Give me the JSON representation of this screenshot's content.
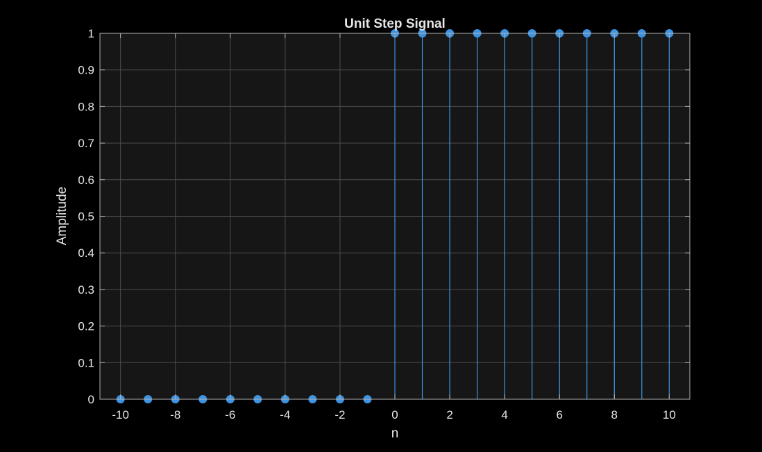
{
  "colors": {
    "figure_background": "#000000",
    "axes_background": "#161616",
    "axes_border": "#b3b3b3",
    "grid": "#4d4d4d",
    "text": "#e6e6e6",
    "series": "#3d93e0"
  },
  "chart_data": {
    "type": "stem",
    "title": "Unit Step Signal",
    "xlabel": "n",
    "ylabel": "Amplitude",
    "xlim": [
      -10.75,
      10.75
    ],
    "ylim": [
      0,
      1
    ],
    "grid": true,
    "xticks": [
      -10,
      -8,
      -6,
      -4,
      -2,
      0,
      2,
      4,
      6,
      8,
      10
    ],
    "xtick_labels": [
      "-10",
      "-8",
      "-6",
      "-4",
      "-2",
      "0",
      "2",
      "4",
      "6",
      "8",
      "10"
    ],
    "yticks": [
      0,
      0.1,
      0.2,
      0.3,
      0.4,
      0.5,
      0.6,
      0.7,
      0.8,
      0.9,
      1
    ],
    "ytick_labels": [
      "0",
      "0.1",
      "0.2",
      "0.3",
      "0.4",
      "0.5",
      "0.6",
      "0.7",
      "0.8",
      "0.9",
      "1"
    ],
    "series": [
      {
        "x": [
          -10,
          -9,
          -8,
          -7,
          -6,
          -5,
          -4,
          -3,
          -2,
          -1,
          0,
          1,
          2,
          3,
          4,
          5,
          6,
          7,
          8,
          9,
          10
        ],
        "values": [
          0,
          0,
          0,
          0,
          0,
          0,
          0,
          0,
          0,
          0,
          1,
          1,
          1,
          1,
          1,
          1,
          1,
          1,
          1,
          1,
          1
        ]
      }
    ]
  }
}
